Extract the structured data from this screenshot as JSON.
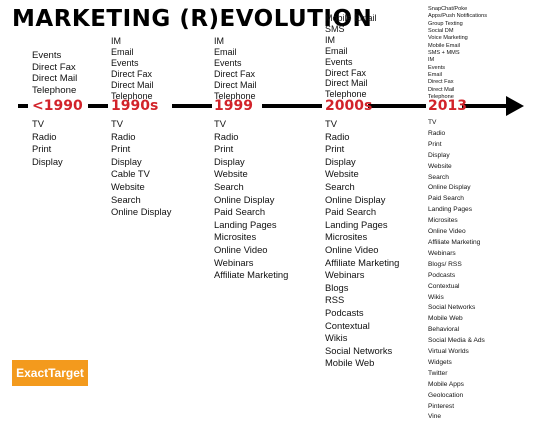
{
  "title": "MARKETING (R)EVOLUTION",
  "brand": "ExactTarget",
  "eras": [
    {
      "label": "<1990",
      "above": [
        "Events",
        "Direct Fax",
        "Direct Mail",
        "Telephone"
      ],
      "below": [
        "TV",
        "Radio",
        "Print",
        "Display"
      ]
    },
    {
      "label": "1990s",
      "above": [
        "IM",
        "Email",
        "Events",
        "Direct Fax",
        "Direct Mail",
        "Telephone"
      ],
      "below": [
        "TV",
        "Radio",
        "Print",
        "Display",
        "Cable TV",
        "Website",
        "Search",
        "Online Display"
      ]
    },
    {
      "label": "1999",
      "above": [
        "IM",
        "Email",
        "Events",
        "Direct Fax",
        "Direct Mail",
        "Telephone"
      ],
      "below": [
        "TV",
        "Radio",
        "Print",
        "Display",
        "Website",
        "Search",
        "Online Display",
        "Paid Search",
        "Landing Pages",
        "Microsites",
        "Online Video",
        "Webinars",
        "Affiliate Marketing"
      ]
    },
    {
      "label": "2000s",
      "above": [
        "Mobile Email",
        "SMS",
        "IM",
        "Email",
        "Events",
        "Direct Fax",
        "Direct Mail",
        "Telephone"
      ],
      "below": [
        "TV",
        "Radio",
        "Print",
        "Display",
        "Website",
        "Search",
        "Online Display",
        "Paid Search",
        "Landing Pages",
        "Microsites",
        "Online Video",
        "Affiliate Marketing",
        "Webinars",
        "Blogs",
        "RSS",
        "Podcasts",
        "Contextual",
        "Wikis",
        "Social Networks",
        "Mobile Web"
      ]
    },
    {
      "label": "2013",
      "above": [
        "SnapChat/Poke",
        "Apps/Push Notifications",
        "Group Texting",
        "Social DM",
        "Voice Marketing",
        "Mobile Email",
        "SMS + MMS",
        "IM",
        "Events",
        "Email",
        "Direct Fax",
        "Direct Mail",
        "Telephone"
      ],
      "below": [
        "TV",
        "Radio",
        "Print",
        "Display",
        "Website",
        "Search",
        "Online Display",
        "Paid Search",
        "Landing Pages",
        "Microsites",
        "Online Video",
        "Affiliate Marketing",
        "Webinars",
        "Blogs/ RSS",
        "Podcasts",
        "Contextual",
        "Wikis",
        "Social Networks",
        "Mobile Web",
        "Behavioral",
        "Social Media & Ads",
        "Virtual Worlds",
        "Widgets",
        "Twitter",
        "Mobile Apps",
        "Geolocation",
        "Pinterest",
        "Vine"
      ]
    }
  ]
}
